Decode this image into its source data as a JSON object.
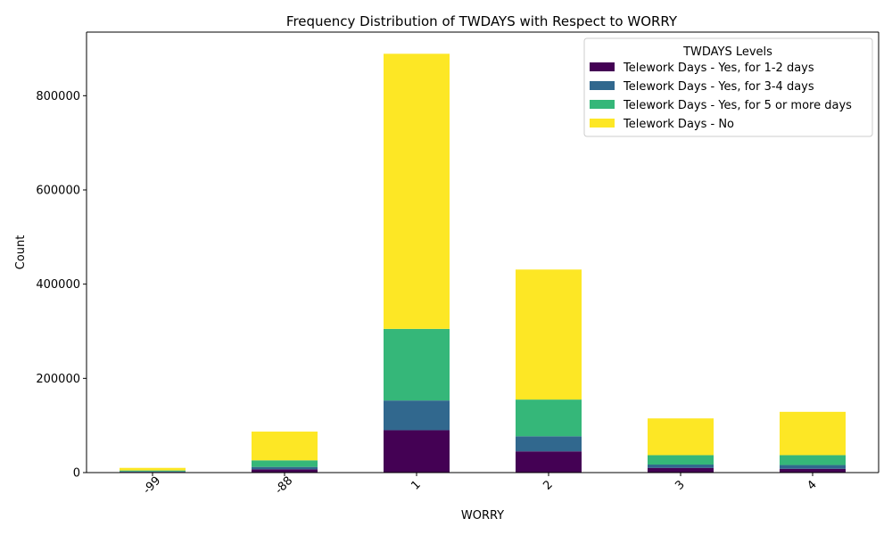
{
  "chart_data": {
    "type": "bar",
    "stacked": true,
    "title": "Frequency Distribution of TWDAYS with Respect to WORRY",
    "xlabel": "WORRY",
    "ylabel": "Count",
    "categories": [
      "-99",
      "-88",
      "1",
      "2",
      "3",
      "4"
    ],
    "ylim": [
      0,
      935000
    ],
    "yticks": [
      0,
      200000,
      400000,
      600000,
      800000
    ],
    "grid": false,
    "legend": {
      "title": "TWDAYS Levels",
      "placement": "top-right"
    },
    "series": [
      {
        "name": "Telework Days - Yes, for 1-2 days",
        "color": "#440154",
        "values": [
          1500,
          7000,
          90000,
          45000,
          10000,
          8000
        ]
      },
      {
        "name": "Telework Days - Yes, for 3-4 days",
        "color": "#31688e",
        "values": [
          1000,
          5000,
          63000,
          32000,
          7000,
          8000
        ]
      },
      {
        "name": "Telework Days - Yes, for 5 or more days",
        "color": "#35b779",
        "values": [
          2000,
          14000,
          152000,
          78000,
          20000,
          21000
        ]
      },
      {
        "name": "Telework Days - No",
        "color": "#fde725",
        "values": [
          5500,
          61000,
          584000,
          276000,
          78000,
          92000
        ]
      }
    ]
  }
}
